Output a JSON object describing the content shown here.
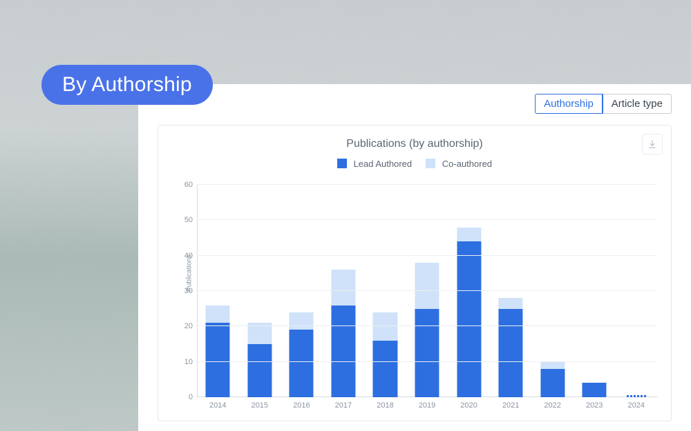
{
  "pill_label": "By Authorship",
  "tabs": [
    {
      "label": "Authorship",
      "active": true
    },
    {
      "label": "Article type",
      "active": false
    }
  ],
  "chart": {
    "type": "stacked-bar",
    "title": "Publications (by authorship)",
    "ylabel": "Publications",
    "ylim": [
      0,
      60
    ],
    "ytick_step": 10,
    "background_color": "#ffffff",
    "grid_color": "#edeff2",
    "axis_color": "#d6dae1",
    "title_fontsize": 16,
    "label_fontsize": 11,
    "bar_width_ratio": 0.58,
    "legend": [
      {
        "label": "Lead Authored",
        "color": "#2d6fe0"
      },
      {
        "label": "Co-authored",
        "color": "#cfe2f9"
      }
    ],
    "categories": [
      "2014",
      "2015",
      "2016",
      "2017",
      "2018",
      "2019",
      "2020",
      "2021",
      "2022",
      "2023",
      "2024"
    ],
    "series": {
      "lead_authored": [
        21,
        15,
        19,
        26,
        16,
        25,
        44,
        25,
        8,
        4,
        0
      ],
      "co_authored": [
        5,
        6,
        5,
        10,
        8,
        13,
        4,
        3,
        2,
        0,
        0
      ]
    },
    "future_year_index": 10
  },
  "download_tooltip": "Download"
}
